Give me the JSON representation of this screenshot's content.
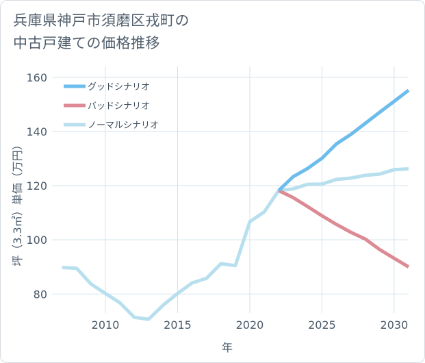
{
  "title_lines": [
    "兵庫県神戸市須磨区戎町の",
    "中古戸建ての価格推移"
  ],
  "chart_data": {
    "type": "line",
    "title": "兵庫県神戸市須磨区戎町の中古戸建ての価格推移",
    "xlabel": "年",
    "ylabel": "坪（3.3㎡）単価（万円）",
    "xlim": [
      2006.3,
      2031
    ],
    "ylim": [
      73,
      164
    ],
    "xticks": [
      2010,
      2015,
      2020,
      2025,
      2030
    ],
    "yticks": [
      80,
      100,
      120,
      140,
      160
    ],
    "grid": true,
    "legend_position": "top-left",
    "series": [
      {
        "name": "グッドシナリオ",
        "color": "#6cbcec",
        "x": [
          2022,
          2023,
          2024,
          2025,
          2026,
          2027,
          2028,
          2029,
          2030,
          2031
        ],
        "y": [
          118.2,
          123.3,
          126.3,
          130.1,
          135.4,
          138.9,
          143.0,
          147.1,
          151.1,
          155.2
        ]
      },
      {
        "name": "バッドシナリオ",
        "color": "#dc8a93",
        "x": [
          2022,
          2023,
          2024,
          2025,
          2026,
          2027,
          2028,
          2029,
          2030,
          2031
        ],
        "y": [
          118.2,
          115.6,
          112.3,
          108.9,
          105.7,
          102.8,
          100.3,
          96.4,
          93.2,
          90.0
        ]
      },
      {
        "name": "ノーマルシナリオ",
        "color": "#b8dfee",
        "x": [
          2007,
          2008,
          2009,
          2010,
          2011,
          2012,
          2013,
          2014,
          2015,
          2016,
          2017,
          2018,
          2019,
          2020,
          2021,
          2022,
          2023,
          2024,
          2025,
          2026,
          2027,
          2028,
          2029,
          2030,
          2031
        ],
        "y": [
          89.8,
          89.5,
          83.7,
          80.2,
          76.8,
          71.4,
          70.7,
          75.9,
          80.2,
          84.1,
          85.8,
          91.2,
          90.5,
          106.7,
          110.3,
          118.2,
          118.8,
          120.5,
          120.6,
          122.3,
          122.8,
          123.8,
          124.3,
          125.9,
          126.2
        ]
      }
    ]
  }
}
